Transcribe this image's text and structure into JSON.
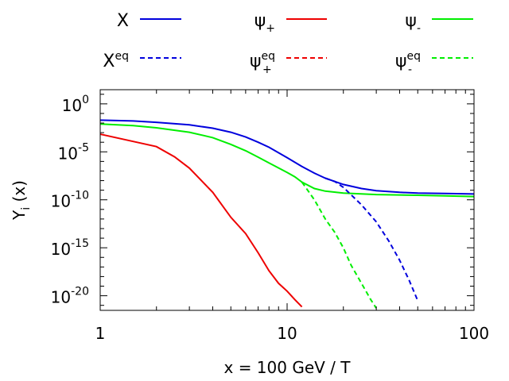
{
  "chart_data": {
    "type": "line",
    "x_scale": "log",
    "y_scale": "log",
    "xlim": [
      1,
      100
    ],
    "ylim": [
      3e-22,
      30
    ],
    "grid": false,
    "legend_placement": "top",
    "xlabel": "x = 100 GeV / T",
    "ylabel": {
      "base": "Y",
      "sub": "i",
      "rest": " (x)"
    },
    "x_ticks": [
      {
        "value": 1,
        "label": "1"
      },
      {
        "value": 10,
        "label": "10"
      },
      {
        "value": 100,
        "label": "100"
      }
    ],
    "y_ticks": [
      {
        "value": 1,
        "base": "10",
        "exp": "0"
      },
      {
        "value": 1e-05,
        "base": "10",
        "exp": "-5"
      },
      {
        "value": 1e-10,
        "base": "10",
        "exp": "-10"
      },
      {
        "value": 1e-15,
        "base": "10",
        "exp": "-15"
      },
      {
        "value": 1e-20,
        "base": "10",
        "exp": "-20"
      }
    ],
    "series": [
      {
        "name": "X",
        "label": {
          "main": "X",
          "sub": "",
          "sup": ""
        },
        "color": "#0000dd",
        "dash": "solid",
        "points": [
          [
            1,
            0.02
          ],
          [
            1.5,
            0.0165
          ],
          [
            2,
            0.012
          ],
          [
            3,
            0.0065
          ],
          [
            4,
            0.0029
          ],
          [
            5,
            0.0011
          ],
          [
            6,
            0.00035
          ],
          [
            7,
            0.0001
          ],
          [
            8,
            3e-05
          ],
          [
            10,
            2.5e-06
          ],
          [
            12,
            3e-07
          ],
          [
            14,
            6e-08
          ],
          [
            16,
            1.8e-08
          ],
          [
            20,
            4e-09
          ],
          [
            25,
            1.5e-09
          ],
          [
            30,
            9e-10
          ],
          [
            40,
            6e-10
          ],
          [
            50,
            5e-10
          ],
          [
            70,
            4.5e-10
          ],
          [
            100,
            4e-10
          ]
        ]
      },
      {
        "name": "ψ+",
        "label": {
          "main": "ψ",
          "sub": "+",
          "sup": ""
        },
        "color": "#ee0000",
        "dash": "solid",
        "points": [
          [
            1,
            0.0007
          ],
          [
            1.5,
            0.00012
          ],
          [
            2,
            3.5e-05
          ],
          [
            2.5,
            3e-06
          ],
          [
            3,
            2e-07
          ],
          [
            4,
            6e-10
          ],
          [
            5,
            1.5e-12
          ],
          [
            6,
            3e-14
          ],
          [
            7,
            3e-16
          ],
          [
            8,
            4e-18
          ],
          [
            9,
            2e-19
          ],
          [
            10,
            3e-20
          ],
          [
            11,
            4e-21
          ],
          [
            12,
            7e-22
          ]
        ]
      },
      {
        "name": "ψ-",
        "label": {
          "main": "ψ",
          "sub": "-",
          "sup": ""
        },
        "color": "#00ee00",
        "dash": "solid",
        "points": [
          [
            1,
            0.008
          ],
          [
            1.5,
            0.0055
          ],
          [
            2,
            0.0032
          ],
          [
            3,
            0.0011
          ],
          [
            4,
            0.0003
          ],
          [
            5,
            6e-05
          ],
          [
            6,
            1.3e-05
          ],
          [
            7,
            2.8e-06
          ],
          [
            8,
            7e-07
          ],
          [
            10,
            7e-08
          ],
          [
            11,
            2.5e-08
          ],
          [
            12,
            7e-09
          ],
          [
            14,
            1.5e-09
          ],
          [
            16,
            8e-10
          ],
          [
            20,
            5e-10
          ],
          [
            30,
            3.5e-10
          ],
          [
            50,
            3e-10
          ],
          [
            70,
            2.6e-10
          ],
          [
            100,
            2.2e-10
          ]
        ]
      },
      {
        "name": "Xeq",
        "label": {
          "main": "X",
          "sub": "",
          "sup": "eq"
        },
        "color": "#0000dd",
        "dash": "dashed",
        "points": [
          [
            16,
            1.8e-08
          ],
          [
            18,
            8e-09
          ],
          [
            20,
            2e-09
          ],
          [
            25,
            3e-11
          ],
          [
            30,
            5e-13
          ],
          [
            35,
            5e-15
          ],
          [
            40,
            5e-17
          ],
          [
            45,
            4e-19
          ],
          [
            50,
            3e-21
          ]
        ]
      },
      {
        "name": "ψ+eq",
        "label": {
          "main": "ψ",
          "sub": "+",
          "sup": "eq"
        },
        "color": "#ee0000",
        "dash": "dashed",
        "points": []
      },
      {
        "name": "ψ-eq",
        "label": {
          "main": "ψ",
          "sub": "-",
          "sup": "eq"
        },
        "color": "#00ee00",
        "dash": "dashed",
        "points": [
          [
            12,
            7e-09
          ],
          [
            14,
            1e-10
          ],
          [
            16,
            1e-12
          ],
          [
            18,
            4e-14
          ],
          [
            20,
            1e-15
          ],
          [
            22,
            1.5e-17
          ],
          [
            25,
            2e-19
          ],
          [
            28,
            4e-21
          ],
          [
            30,
            5e-22
          ]
        ]
      }
    ]
  }
}
